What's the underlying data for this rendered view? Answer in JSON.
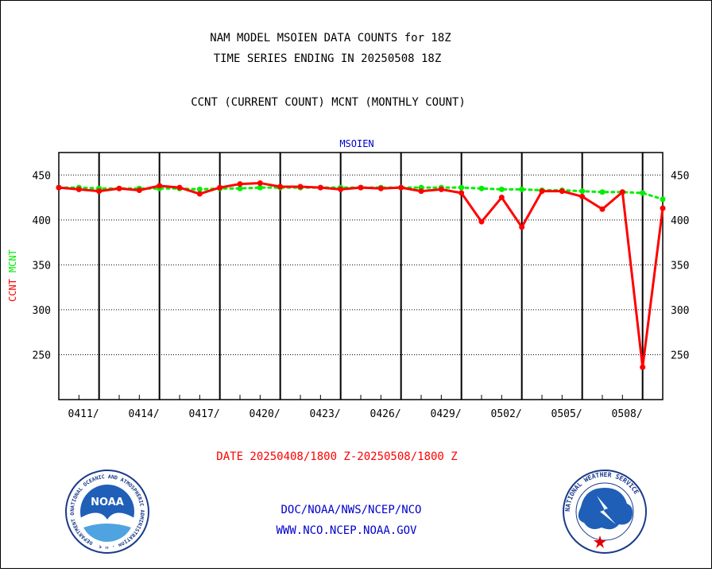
{
  "header": {
    "title_line1": "NAM MODEL MSOIEN DATA COUNTS for 18Z",
    "title_line2": "TIME SERIES ENDING IN 20250508 18Z",
    "subtitle": "CCNT (CURRENT COUNT) MCNT (MONTHLY COUNT)"
  },
  "footer": {
    "date_range": "DATE 20250408/1800 Z-20250508/1800 Z",
    "org_line": "DOC/NOAA/NWS/NCEP/NCO",
    "url_line": "WWW.NCO.NCEP.NOAA.GOV"
  },
  "logos": {
    "noaa_text": "NOAA",
    "noaa_ring_text": "NATIONAL OCEANIC AND ATMOSPHERIC ADMINISTRATION · U.S. DEPARTMENT OF COMMERCE",
    "nws_ring_text": "NATIONAL WEATHER SERVICE"
  },
  "colors": {
    "ccnt": "#ff0000",
    "mcnt": "#00ee00",
    "title": "#000000",
    "plot_label": "#0000cc",
    "footer_link": "#0000cc",
    "date_text": "#ff0000"
  },
  "chart_data": {
    "type": "line",
    "plot_label": "MSOIEN",
    "ylabel_ccnt": "CCNT",
    "ylabel_mcnt": "MCNT",
    "ylim": [
      200,
      475
    ],
    "yticks": [
      250,
      300,
      350,
      400,
      450
    ],
    "xlim": [
      0,
      30
    ],
    "grid": true,
    "x_ticks": [
      {
        "x": 2,
        "label": "0411/"
      },
      {
        "x": 5,
        "label": "0414/"
      },
      {
        "x": 8,
        "label": "0417/"
      },
      {
        "x": 11,
        "label": "0420/"
      },
      {
        "x": 14,
        "label": "0423/"
      },
      {
        "x": 17,
        "label": "0426/"
      },
      {
        "x": 20,
        "label": "0429/"
      },
      {
        "x": 23,
        "label": "0502/"
      },
      {
        "x": 26,
        "label": "0505/"
      },
      {
        "x": 29,
        "label": "0508/"
      }
    ],
    "series": [
      {
        "name": "CCNT",
        "x": [
          0,
          1,
          2,
          3,
          4,
          5,
          6,
          7,
          8,
          9,
          10,
          11,
          12,
          13,
          14,
          15,
          16,
          17,
          18,
          19,
          20,
          21,
          22,
          23,
          24,
          25,
          26,
          27,
          28,
          29,
          30
        ],
        "values": [
          436,
          434,
          432,
          435,
          433,
          438,
          436,
          429,
          436,
          440,
          441,
          437,
          437,
          436,
          434,
          436,
          435,
          436,
          432,
          434,
          430,
          398,
          425,
          392,
          432,
          432,
          426,
          412,
          431,
          236,
          413
        ]
      },
      {
        "name": "MCNT",
        "x": [
          0,
          1,
          2,
          3,
          4,
          5,
          6,
          7,
          8,
          9,
          10,
          11,
          12,
          13,
          14,
          15,
          16,
          17,
          18,
          19,
          20,
          21,
          22,
          23,
          24,
          25,
          26,
          27,
          28,
          29,
          30
        ],
        "values": [
          436,
          436,
          435,
          435,
          435,
          435,
          435,
          434,
          435,
          435,
          436,
          436,
          436,
          436,
          436,
          436,
          436,
          436,
          436,
          436,
          436,
          435,
          434,
          434,
          433,
          433,
          432,
          431,
          431,
          430,
          423
        ]
      }
    ]
  }
}
